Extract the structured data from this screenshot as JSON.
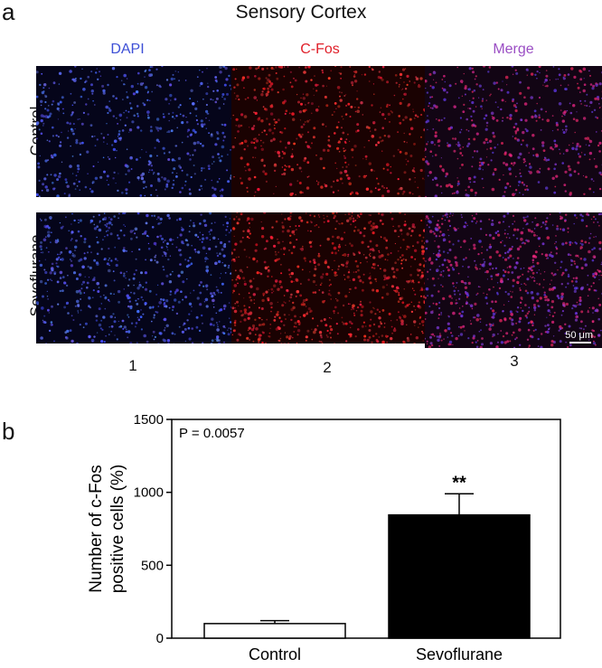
{
  "figure": {
    "panel_a_letter": "a",
    "panel_b_letter": "b",
    "title": "Sensory Cortex",
    "columns": [
      {
        "label": "DAPI",
        "color": "#3d4fd6"
      },
      {
        "label": "C-Fos",
        "color": "#e0202a"
      },
      {
        "label": "Merge",
        "color": "#9b4fc4"
      }
    ],
    "rows": [
      {
        "label": "Control"
      },
      {
        "label": "Sevoflurane"
      }
    ],
    "column_numbers": [
      "1",
      "2",
      "3"
    ],
    "scale_bar": "50 μm"
  },
  "chart_data": {
    "type": "bar",
    "categories": [
      "Control",
      "Sevoflurane"
    ],
    "values": [
      100,
      845
    ],
    "errors": [
      20,
      145
    ],
    "bar_fills": [
      "#ffffff",
      "#000000"
    ],
    "significance": [
      "",
      "**"
    ],
    "annotation": "P = 0.0057",
    "ylabel": [
      "Number of c-Fos",
      "positive cells (%)"
    ],
    "ylim": [
      0,
      1500
    ],
    "yticks": [
      0,
      500,
      1000,
      1500
    ]
  }
}
